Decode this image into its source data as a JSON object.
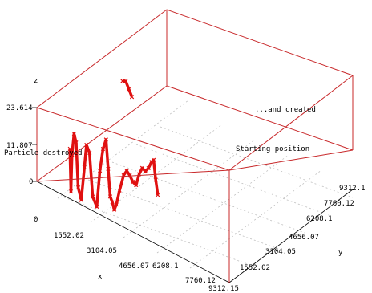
{
  "chart_data": {
    "type": "line3d",
    "title": "",
    "xlabel": "x",
    "ylabel": "y",
    "zlabel": "z",
    "x_ticks": [
      "0",
      "1552.02",
      "3104.05",
      "4656.07",
      "6208.1",
      "7760.12",
      "9312.15"
    ],
    "y_ticks": [
      "1552.02",
      "3104.05",
      "4656.07",
      "6208.1",
      "7760.12",
      "9312.1"
    ],
    "z_ticks": [
      "0",
      "11.807",
      "23.614"
    ],
    "xlim": [
      0,
      9312.15
    ],
    "ylim": [
      0,
      9312.15
    ],
    "zlim": [
      0,
      23.614
    ],
    "grid": true,
    "colors": {
      "series": "#e01010",
      "box": "#c8282a"
    },
    "annotations": [
      "Particle destroyed",
      "...and created",
      "Starting position"
    ],
    "series": [
      {
        "points": [
          [
            1600,
            0,
            16.0
          ],
          [
            1650,
            0,
            2.5
          ],
          [
            1700,
            0,
            14.5
          ],
          [
            1800,
            0,
            21.5
          ],
          [
            1900,
            0,
            19.0
          ],
          [
            2000,
            0,
            5.0
          ],
          [
            2150,
            0,
            1.5
          ],
          [
            2300,
            0,
            12.5
          ],
          [
            2400,
            0,
            20.0
          ],
          [
            2550,
            0,
            18.0
          ],
          [
            2700,
            0,
            4.5
          ],
          [
            2900,
            0,
            2.0
          ],
          [
            3050,
            0,
            14.0
          ],
          [
            3200,
            0,
            21.5
          ],
          [
            3350,
            0,
            25.0
          ],
          [
            3450,
            0,
            16.0
          ],
          [
            3550,
            0,
            7.5
          ],
          [
            3650,
            0,
            6.0
          ],
          [
            3750,
            0,
            4.0
          ],
          [
            3850,
            0,
            6.0
          ],
          [
            4000,
            0,
            11.0
          ],
          [
            4200,
            0,
            16.5
          ],
          [
            4350,
            0,
            18.5
          ],
          [
            4500,
            0,
            17.5
          ],
          [
            4650,
            0,
            16.0
          ],
          [
            4800,
            0,
            15.5
          ],
          [
            4950,
            0,
            19.5
          ],
          [
            5100,
            0,
            22.0
          ],
          [
            5250,
            0,
            21.5
          ],
          [
            5400,
            0,
            23.0
          ],
          [
            5550,
            0,
            25.5
          ],
          [
            5650,
            0,
            26.5
          ],
          [
            5750,
            0,
            20.5
          ],
          [
            5850,
            0,
            16.0
          ]
        ]
      },
      {
        "points": [
          [
            4150,
            0,
            46.5
          ],
          [
            4300,
            0,
            47.0
          ],
          [
            4450,
            0,
            45.0
          ],
          [
            4600,
            0,
            43.0
          ]
        ]
      }
    ]
  }
}
